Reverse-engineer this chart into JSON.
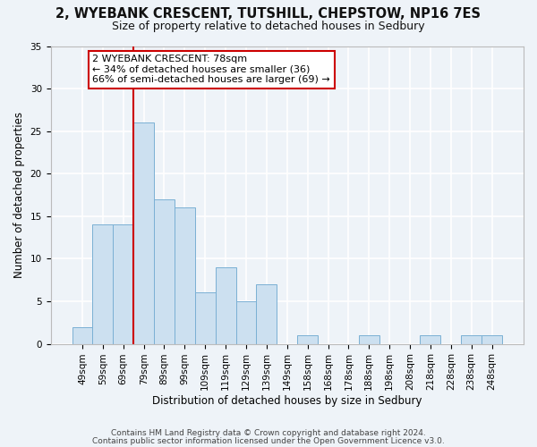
{
  "title1": "2, WYEBANK CRESCENT, TUTSHILL, CHEPSTOW, NP16 7ES",
  "title2": "Size of property relative to detached houses in Sedbury",
  "xlabel": "Distribution of detached houses by size in Sedbury",
  "ylabel": "Number of detached properties",
  "bar_color": "#cce0f0",
  "bar_edge_color": "#7ab0d4",
  "categories": [
    "49sqm",
    "59sqm",
    "69sqm",
    "79sqm",
    "89sqm",
    "99sqm",
    "109sqm",
    "119sqm",
    "129sqm",
    "139sqm",
    "149sqm",
    "158sqm",
    "168sqm",
    "178sqm",
    "188sqm",
    "198sqm",
    "208sqm",
    "218sqm",
    "228sqm",
    "238sqm",
    "248sqm"
  ],
  "values": [
    2,
    14,
    14,
    26,
    17,
    16,
    6,
    9,
    5,
    7,
    0,
    1,
    0,
    0,
    1,
    0,
    0,
    1,
    0,
    1,
    1
  ],
  "ylim": [
    0,
    35
  ],
  "yticks": [
    0,
    5,
    10,
    15,
    20,
    25,
    30,
    35
  ],
  "vline_bin_index": 3,
  "vline_color": "#cc0000",
  "annotation_text": "2 WYEBANK CRESCENT: 78sqm\n← 34% of detached houses are smaller (36)\n66% of semi-detached houses are larger (69) →",
  "annotation_box_color": "#ffffff",
  "annotation_box_edge": "#cc0000",
  "footer1": "Contains HM Land Registry data © Crown copyright and database right 2024.",
  "footer2": "Contains public sector information licensed under the Open Government Licence v3.0.",
  "background_color": "#eef3f8",
  "grid_color": "#ffffff",
  "title1_fontsize": 10.5,
  "title2_fontsize": 9,
  "ylabel_fontsize": 8.5,
  "xlabel_fontsize": 8.5,
  "tick_fontsize": 7.5,
  "footer_fontsize": 6.5
}
